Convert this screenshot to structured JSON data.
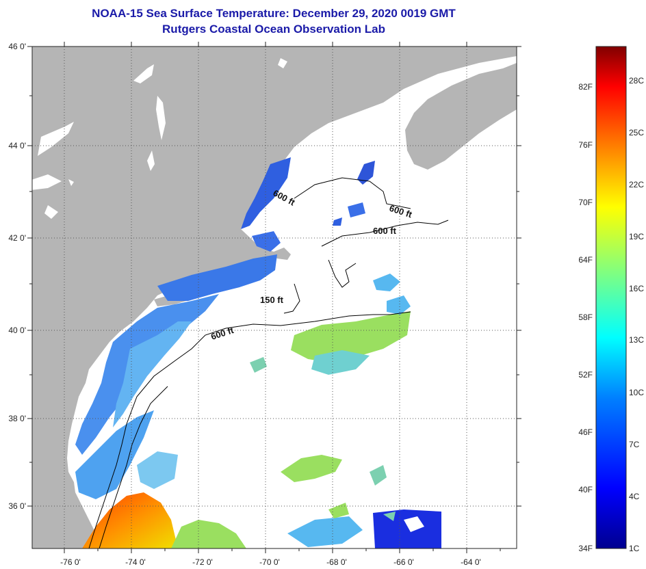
{
  "title": "NOAA-15 Sea Surface Temperature:  December 29, 2020 0019 GMT",
  "subtitle": "Rutgers Coastal Ocean Observation Lab",
  "lat_labels": [
    "46 0'",
    "44 0'",
    "42 0'",
    "40 0'",
    "38 0'",
    "36 0'"
  ],
  "lon_labels": [
    "-76 0'",
    "-74 0'",
    "-72 0'",
    "-70 0'",
    "-68 0'",
    "-66 0'",
    "-64 0'"
  ],
  "contour_labels": [
    "600 ft",
    "600 ft",
    "600 ft",
    "150 ft",
    "600 ft"
  ],
  "colorbar": {
    "fahrenheit": [
      "82F",
      "76F",
      "70F",
      "64F",
      "58F",
      "52F",
      "46F",
      "40F",
      "34F"
    ],
    "celsius": [
      "28C",
      "25C",
      "22C",
      "19C",
      "16C",
      "13C",
      "10C",
      "7C",
      "4C",
      "1C"
    ],
    "range_c": [
      1,
      31
    ],
    "range_f": [
      34,
      88
    ]
  },
  "colors": {
    "land": "#b5b5b5",
    "title": "#1a1aa8",
    "ocean_no_data": "#ffffff"
  }
}
